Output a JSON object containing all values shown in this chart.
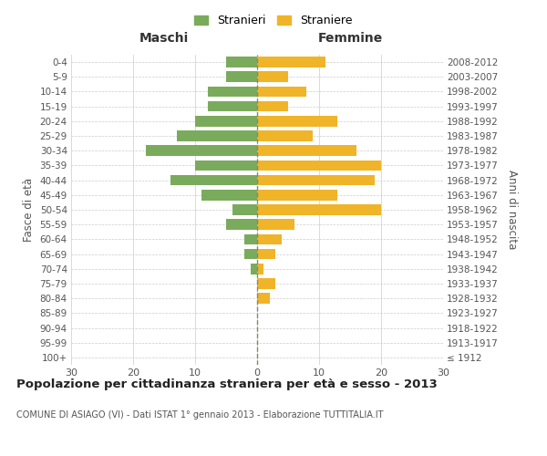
{
  "age_groups": [
    "100+",
    "95-99",
    "90-94",
    "85-89",
    "80-84",
    "75-79",
    "70-74",
    "65-69",
    "60-64",
    "55-59",
    "50-54",
    "45-49",
    "40-44",
    "35-39",
    "30-34",
    "25-29",
    "20-24",
    "15-19",
    "10-14",
    "5-9",
    "0-4"
  ],
  "birth_years": [
    "≤ 1912",
    "1913-1917",
    "1918-1922",
    "1923-1927",
    "1928-1932",
    "1933-1937",
    "1938-1942",
    "1943-1947",
    "1948-1952",
    "1953-1957",
    "1958-1962",
    "1963-1967",
    "1968-1972",
    "1973-1977",
    "1978-1982",
    "1983-1987",
    "1988-1992",
    "1993-1997",
    "1998-2002",
    "2003-2007",
    "2008-2012"
  ],
  "maschi": [
    0,
    0,
    0,
    0,
    0,
    0,
    1,
    2,
    2,
    5,
    4,
    9,
    14,
    10,
    18,
    13,
    10,
    8,
    8,
    5,
    5
  ],
  "femmine": [
    0,
    0,
    0,
    0,
    2,
    3,
    1,
    3,
    4,
    6,
    20,
    13,
    19,
    20,
    16,
    9,
    13,
    5,
    8,
    5,
    11
  ],
  "maschi_color": "#7aab5c",
  "femmine_color": "#f0b429",
  "title": "Popolazione per cittadinanza straniera per età e sesso - 2013",
  "subtitle": "COMUNE DI ASIAGO (VI) - Dati ISTAT 1° gennaio 2013 - Elaborazione TUTTITALIA.IT",
  "xlabel_left": "Maschi",
  "xlabel_right": "Femmine",
  "ylabel_left": "Fasce di età",
  "ylabel_right": "Anni di nascita",
  "legend_maschi": "Stranieri",
  "legend_femmine": "Straniere",
  "xlim": 30,
  "background_color": "#ffffff",
  "grid_color": "#cccccc",
  "dashed_line_color": "#888866"
}
